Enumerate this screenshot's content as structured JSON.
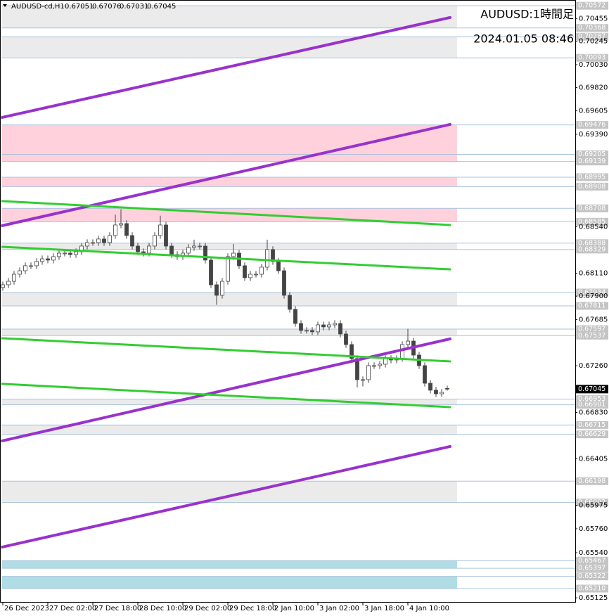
{
  "chart_data": {
    "type": "candlestick",
    "title": "AUDUSD-cd,H1",
    "annotations": [
      "AUDUSD:1時間足",
      "2024.01.05 08:46"
    ],
    "open": [
      0.6798,
      0.68005,
      0.68037,
      0.68102,
      0.68134,
      0.6818,
      0.6818,
      0.68219,
      0.68244,
      0.68232,
      0.68264,
      0.68296,
      0.68296,
      0.68283,
      0.68309,
      0.68361,
      0.68393,
      0.68393,
      0.68426,
      0.68393,
      0.68458,
      0.68555,
      0.68568,
      0.68458,
      0.68361,
      0.68309,
      0.68296,
      0.68361,
      0.68458,
      0.68555,
      0.68361,
      0.68283,
      0.68264,
      0.68296,
      0.68348,
      0.68361,
      0.68361,
      0.68232,
      0.68005,
      0.67908,
      0.68037,
      0.68264,
      0.68296,
      0.6818,
      0.6807,
      0.68102,
      0.68102,
      0.68167,
      0.68329,
      0.68219,
      0.68134,
      0.67908,
      0.67779,
      0.67649,
      0.67585,
      0.67585,
      0.67572,
      0.67636,
      0.67617,
      0.67636,
      0.67649,
      0.67552,
      0.67455,
      0.67326,
      0.67132,
      0.67132,
      0.67261,
      0.67261,
      0.67274,
      0.67326,
      0.67313,
      0.67326,
      0.67455,
      0.67487,
      0.67358,
      0.67261,
      0.67099,
      0.67035,
      0.67002,
      0.67051
    ],
    "high": [
      0.68035,
      0.68067,
      0.68132,
      0.68164,
      0.6821,
      0.6821,
      0.68249,
      0.68274,
      0.68274,
      0.68294,
      0.68326,
      0.68326,
      0.68326,
      0.68339,
      0.68391,
      0.68423,
      0.68423,
      0.68456,
      0.68456,
      0.68488,
      0.6865,
      0.687,
      0.68598,
      0.68488,
      0.68391,
      0.68339,
      0.68391,
      0.68488,
      0.6864,
      0.68585,
      0.68391,
      0.68313,
      0.68326,
      0.68378,
      0.6842,
      0.68391,
      0.68391,
      0.68262,
      0.68035,
      0.68067,
      0.68294,
      0.6838,
      0.68326,
      0.6821,
      0.68132,
      0.68132,
      0.68197,
      0.6842,
      0.68359,
      0.68249,
      0.68164,
      0.67938,
      0.67809,
      0.67679,
      0.67615,
      0.67615,
      0.67666,
      0.67666,
      0.67666,
      0.67679,
      0.67679,
      0.67582,
      0.67485,
      0.67356,
      0.67162,
      0.67291,
      0.67291,
      0.67304,
      0.67356,
      0.67356,
      0.67356,
      0.67485,
      0.676,
      0.67517,
      0.67388,
      0.67291,
      0.67129,
      0.67065,
      0.67045,
      0.67076
    ],
    "low": [
      0.6795,
      0.67975,
      0.68007,
      0.68072,
      0.68104,
      0.6815,
      0.6815,
      0.68189,
      0.68202,
      0.68202,
      0.68234,
      0.68266,
      0.68253,
      0.68253,
      0.68279,
      0.68331,
      0.68363,
      0.68363,
      0.68363,
      0.68363,
      0.68428,
      0.68525,
      0.68428,
      0.68331,
      0.68279,
      0.68266,
      0.68266,
      0.68331,
      0.68428,
      0.68331,
      0.68253,
      0.68234,
      0.68234,
      0.68266,
      0.68318,
      0.68331,
      0.68202,
      0.67975,
      0.6782,
      0.67878,
      0.68007,
      0.68234,
      0.6815,
      0.6804,
      0.6804,
      0.68072,
      0.68072,
      0.68137,
      0.68189,
      0.68104,
      0.67878,
      0.67749,
      0.67619,
      0.67555,
      0.67555,
      0.67542,
      0.67542,
      0.67587,
      0.67587,
      0.67606,
      0.67522,
      0.67425,
      0.67296,
      0.6706,
      0.6707,
      0.67102,
      0.67231,
      0.67231,
      0.67244,
      0.67283,
      0.67283,
      0.67296,
      0.67425,
      0.67328,
      0.67231,
      0.67069,
      0.67005,
      0.66972,
      0.66972,
      0.67031
    ],
    "close": [
      0.68005,
      0.68037,
      0.68102,
      0.68134,
      0.6818,
      0.6818,
      0.68219,
      0.68244,
      0.68232,
      0.68264,
      0.68296,
      0.68296,
      0.68283,
      0.68309,
      0.68361,
      0.68393,
      0.68393,
      0.68426,
      0.68393,
      0.68458,
      0.68555,
      0.68568,
      0.68458,
      0.68361,
      0.68309,
      0.68296,
      0.68361,
      0.68458,
      0.68555,
      0.68361,
      0.68283,
      0.68264,
      0.68296,
      0.68348,
      0.68361,
      0.68361,
      0.68232,
      0.68005,
      0.67908,
      0.68037,
      0.68264,
      0.68296,
      0.6818,
      0.6807,
      0.68102,
      0.68102,
      0.68167,
      0.68329,
      0.68219,
      0.68134,
      0.67908,
      0.67779,
      0.67649,
      0.67585,
      0.67585,
      0.67572,
      0.67636,
      0.67617,
      0.67636,
      0.67649,
      0.67552,
      0.67455,
      0.67326,
      0.67132,
      0.67132,
      0.67261,
      0.67261,
      0.67274,
      0.67326,
      0.67313,
      0.67326,
      0.67455,
      0.67487,
      0.67358,
      0.67261,
      0.67099,
      0.67035,
      0.67002,
      0.67015,
      0.67045
    ],
    "xlim": [
      -0.5,
      101.75
    ],
    "xticks": [
      {
        "value": 0,
        "label": "26 Dec 2023"
      },
      {
        "value": 8,
        "label": "27 Dec 02:00"
      },
      {
        "value": 16,
        "label": "27 Dec 18:00"
      },
      {
        "value": 24,
        "label": "28 Dec 10:00"
      },
      {
        "value": 32,
        "label": "29 Dec 02:00"
      },
      {
        "value": 40,
        "label": "29 Dec 18:00"
      },
      {
        "value": 48,
        "label": "2 Jan 10:00"
      },
      {
        "value": 56,
        "label": "3 Jan 02:00"
      },
      {
        "value": 64,
        "label": "3 Jan 18:00"
      },
      {
        "value": 72,
        "label": "4 Jan 10:00"
      }
    ],
    "ylim": [
      0.65087,
      0.70612
    ],
    "yticks": [
      0.70455,
      0.70245,
      {
        "value": 0.7003,
        "label": "0.70030"
      },
      {
        "value": 0.6982,
        "label": "0.69820"
      },
      0.69605,
      {
        "value": 0.6939,
        "label": "0.69390"
      },
      {
        "value": 0.6854,
        "label": "0.68540"
      },
      {
        "value": 0.6811,
        "label": "0.68110"
      },
      {
        "value": 0.679,
        "label": "0.67900"
      },
      0.67685,
      {
        "value": 0.6726,
        "label": "0.67260"
      },
      {
        "value": 0.6683,
        "label": "0.66830"
      },
      0.66405,
      0.65975,
      {
        "value": 0.6576,
        "label": "0.65760"
      },
      {
        "value": 0.6554,
        "label": "0.65540"
      },
      0.65125
    ],
    "levels": [
      0.70572,
      0.70368,
      0.70287,
      0.70093,
      0.69476,
      0.69205,
      0.69139,
      0.68995,
      0.68908,
      0.68708,
      0.68585,
      0.68388,
      0.68329,
      0.67934,
      0.67811,
      0.67597,
      0.67537,
      0.66953,
      0.66901,
      0.66715,
      0.66629,
      0.66198,
      0.66002,
      0.65467,
      0.65397,
      0.65322,
      {
        "value": 0.6521,
        "label": "0.65210"
      }
    ],
    "level_color": "#a9c3dc",
    "zones": [
      {
        "from": 0.70368,
        "to": 0.70572,
        "color": "#ebebeb"
      },
      {
        "from": 0.70093,
        "to": 0.70287,
        "color": "#ebebeb"
      },
      {
        "from": 0.69139,
        "to": 0.69476,
        "color": "#ffd1dc"
      },
      {
        "from": 0.68908,
        "to": 0.68995,
        "color": "#ffd1dc"
      },
      {
        "from": 0.68585,
        "to": 0.68708,
        "color": "#ffd1dc"
      },
      {
        "from": 0.68329,
        "to": 0.68388,
        "color": "#ebebeb"
      },
      {
        "from": 0.67811,
        "to": 0.67934,
        "color": "#ebebeb"
      },
      {
        "from": 0.67537,
        "to": 0.67597,
        "color": "#ebebeb"
      },
      {
        "from": 0.66901,
        "to": 0.66953,
        "color": "#ebebeb"
      },
      {
        "from": 0.66629,
        "to": 0.66715,
        "color": "#ebebeb"
      },
      {
        "from": 0.66002,
        "to": 0.66198,
        "color": "#ebebeb"
      },
      {
        "from": 0.65397,
        "to": 0.65467,
        "color": "#b0dde4"
      },
      {
        "from": 0.6521,
        "to": 0.65322,
        "color": "#b0dde4"
      }
    ],
    "trendlines": [
      {
        "color": "#9932cc",
        "x": [
          -0.1,
          79.5
        ],
        "y": [
          0.69545,
          0.70464
        ]
      },
      {
        "color": "#9932cc",
        "x": [
          -0.1,
          79.5
        ],
        "y": [
          0.68549,
          0.6948
        ]
      },
      {
        "color": "#9932cc",
        "x": [
          -0.1,
          79.5
        ],
        "y": [
          0.66569,
          0.67507
        ]
      },
      {
        "color": "#9932cc",
        "x": [
          -0.1,
          79.5
        ],
        "y": [
          0.65592,
          0.66517
        ]
      },
      {
        "color": "#32cd32",
        "x": [
          -0.1,
          79.5
        ],
        "y": [
          0.68775,
          0.68555
        ]
      },
      {
        "color": "#32cd32",
        "x": [
          -0.1,
          79.5
        ],
        "y": [
          0.68354,
          0.68147
        ]
      },
      {
        "color": "#32cd32",
        "x": [
          -0.1,
          79.5
        ],
        "y": [
          0.67513,
          0.673
        ]
      },
      {
        "color": "#32cd32",
        "x": [
          -0.1,
          79.5
        ],
        "y": [
          0.67093,
          0.66879
        ]
      }
    ]
  }
}
